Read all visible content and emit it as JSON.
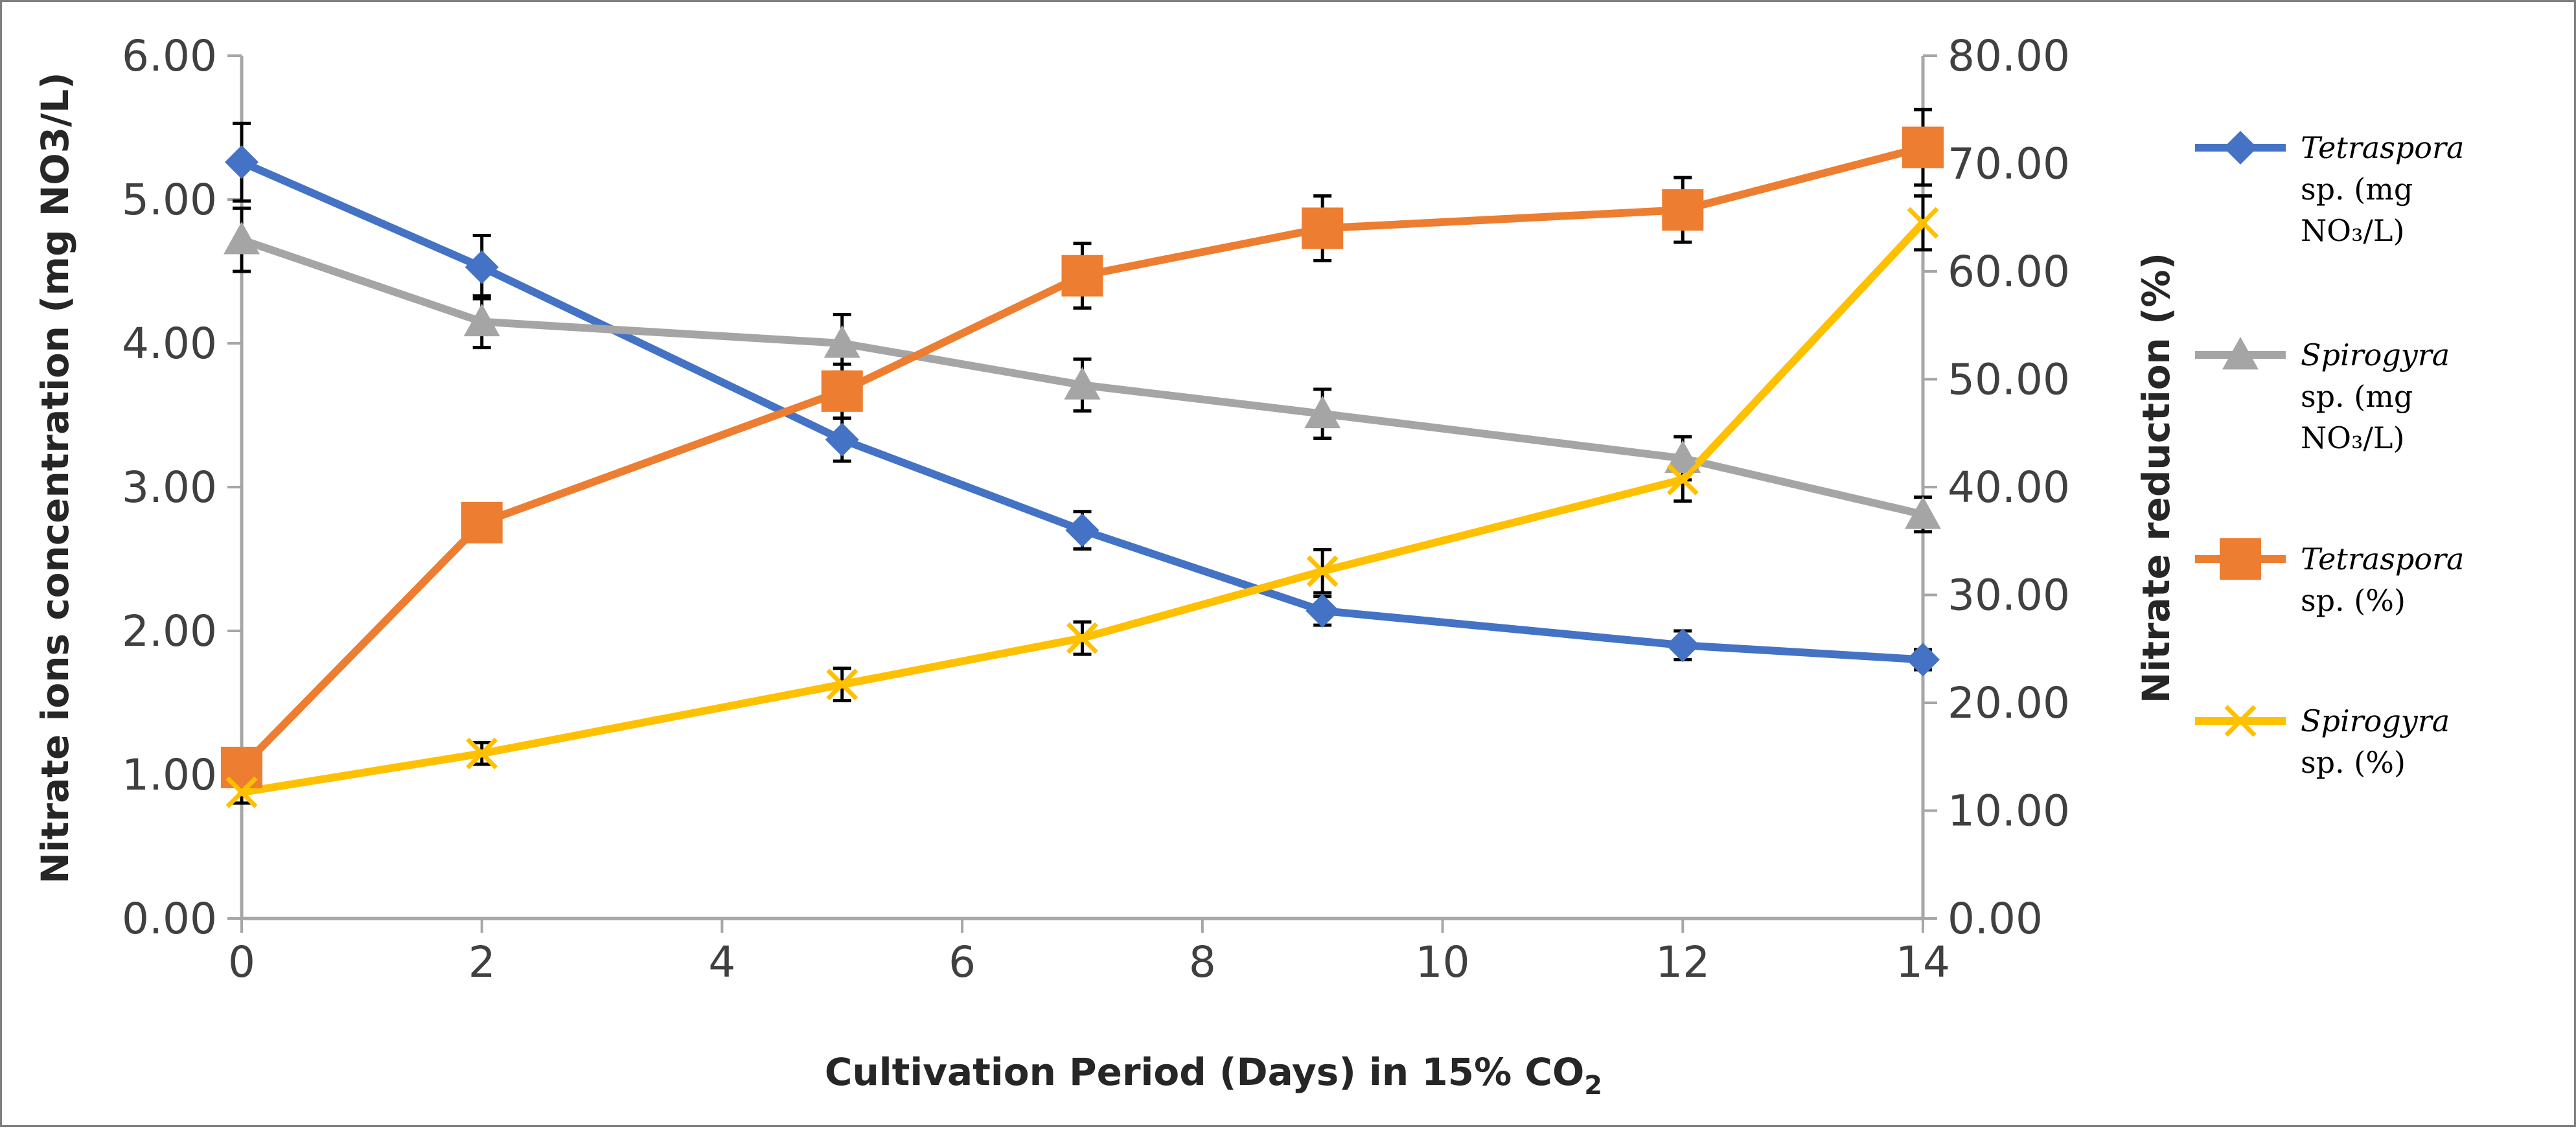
{
  "chart_data": {
    "type": "line",
    "xlabel": "Cultivation Period (Days) in 15% CO",
    "xlabel_sub": "2",
    "ylabel_left": "Nitrate ions concentration (mg NO3/L)",
    "ylabel_right": "Nitrate reduction (%)",
    "x_ticks": [
      "0",
      "2",
      "4",
      "6",
      "8",
      "10",
      "12",
      "14"
    ],
    "xlim": [
      0,
      14
    ],
    "y_left_ticks": [
      "0.00",
      "1.00",
      "2.00",
      "3.00",
      "4.00",
      "5.00",
      "6.00"
    ],
    "y_left_lim": [
      0,
      6
    ],
    "y_right_ticks": [
      "0.00",
      "10.00",
      "20.00",
      "30.00",
      "40.00",
      "50.00",
      "60.00",
      "70.00",
      "80.00"
    ],
    "y_right_lim": [
      0,
      80
    ],
    "grid": false,
    "legend_position": "right",
    "series": [
      {
        "name": "Tetraspora sp. (mg NO3/L)",
        "legend_lines": [
          [
            "Tetraspora",
            true
          ],
          [
            "sp. (mg",
            false
          ],
          [
            "NO₃/L)",
            false
          ]
        ],
        "axis": "left",
        "marker": "diamond",
        "color": "#4472C4",
        "x": [
          0,
          2,
          5,
          7,
          9,
          12,
          14
        ],
        "values": [
          5.26,
          4.53,
          3.33,
          2.7,
          2.14,
          1.9,
          1.8
        ],
        "errors": [
          0.27,
          0.22,
          0.15,
          0.13,
          0.1,
          0.1,
          0.07
        ]
      },
      {
        "name": "Spirogyra sp. (mg NO3/L)",
        "legend_lines": [
          [
            "Spirogyra",
            true
          ],
          [
            "sp. (mg",
            false
          ],
          [
            "NO₃/L)",
            false
          ]
        ],
        "axis": "left",
        "marker": "triangle",
        "color": "#A5A5A5",
        "x": [
          0,
          2,
          5,
          7,
          9,
          12,
          14
        ],
        "values": [
          4.72,
          4.15,
          4.0,
          3.71,
          3.51,
          3.2,
          2.81
        ],
        "errors": [
          0.22,
          0.18,
          0.2,
          0.18,
          0.17,
          0.15,
          0.12
        ]
      },
      {
        "name": "Tetraspora sp. (%)",
        "legend_lines": [
          [
            "Tetraspora",
            true
          ],
          [
            "sp. (%)",
            false
          ]
        ],
        "axis": "right",
        "marker": "square",
        "color": "#ED7D31",
        "x": [
          0,
          2,
          5,
          7,
          9,
          12,
          14
        ],
        "values": [
          14.0,
          36.7,
          48.9,
          59.6,
          64.0,
          65.7,
          71.5
        ],
        "errors": [
          1.5,
          1.5,
          2.5,
          3.0,
          3.0,
          3.0,
          3.5
        ]
      },
      {
        "name": "Spirogyra sp. (%)",
        "legend_lines": [
          [
            "Spirogyra",
            true
          ],
          [
            "sp. (%)",
            false
          ]
        ],
        "axis": "right",
        "marker": "x",
        "color": "#FFC000",
        "x": [
          0,
          2,
          5,
          7,
          9,
          12,
          14
        ],
        "values": [
          11.7,
          15.3,
          21.7,
          26.0,
          32.2,
          40.7,
          64.5
        ],
        "errors": [
          1.0,
          1.0,
          1.5,
          1.5,
          2.0,
          2.0,
          2.5
        ]
      }
    ]
  }
}
